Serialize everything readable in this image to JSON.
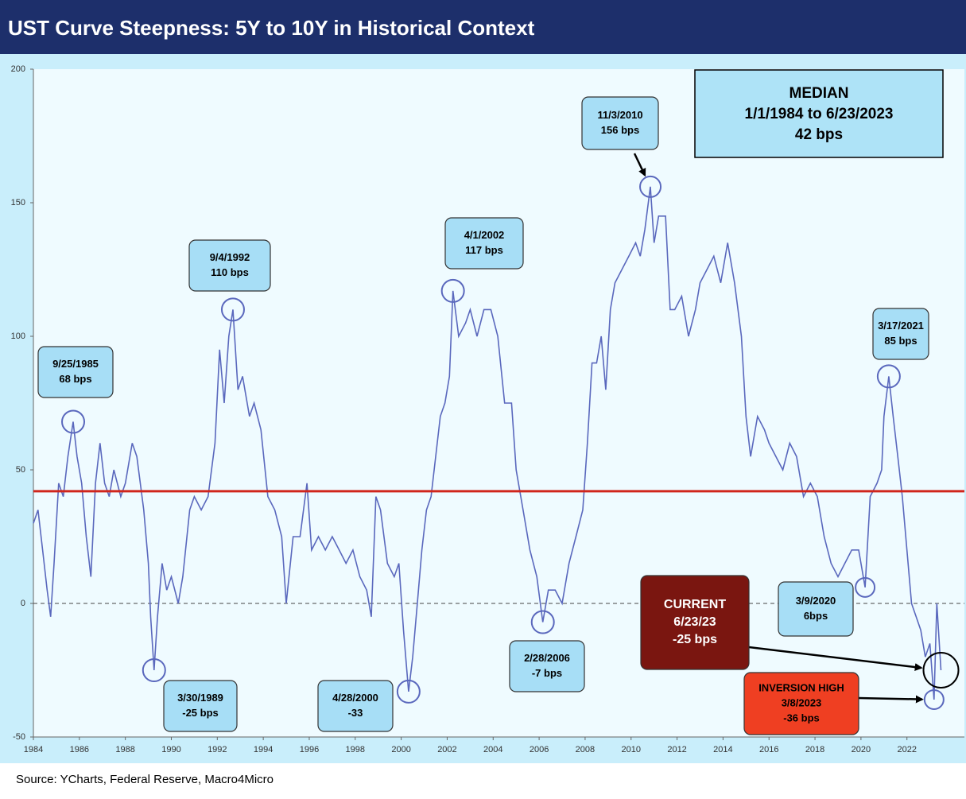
{
  "chart_data": {
    "type": "line",
    "title": "UST Curve Steepness: 5Y to 10Y in Historical Context",
    "source": "Source: YCharts, Federal Reserve, Macro4Micro",
    "xlim": [
      1984,
      2024.5
    ],
    "xticks": [
      1984,
      1986,
      1988,
      1990,
      1992,
      1994,
      1996,
      1998,
      2000,
      2002,
      2004,
      2006,
      2008,
      2010,
      2012,
      2014,
      2016,
      2018,
      2020,
      2022
    ],
    "ylim": [
      -50,
      200
    ],
    "yticks": [
      200,
      150,
      100,
      50,
      0,
      -50
    ],
    "median": 42,
    "median_color": "#d0261c",
    "median_box": {
      "lines": [
        "MEDIAN",
        "1/1/1984 to 6/23/2023",
        "42 bps"
      ]
    },
    "series": [
      {
        "color": "#5a68bd",
        "x": [
          1984.0,
          1984.2,
          1984.4,
          1984.6,
          1984.75,
          1984.9,
          1985.1,
          1985.3,
          1985.5,
          1985.73,
          1985.9,
          1986.1,
          1986.3,
          1986.5,
          1986.7,
          1986.9,
          1987.1,
          1987.3,
          1987.5,
          1987.8,
          1988.0,
          1988.3,
          1988.5,
          1988.8,
          1989.0,
          1989.1,
          1989.25,
          1989.4,
          1989.6,
          1989.8,
          1990.0,
          1990.3,
          1990.5,
          1990.8,
          1991.0,
          1991.3,
          1991.6,
          1991.9,
          1992.1,
          1992.3,
          1992.5,
          1992.68,
          1992.9,
          1993.1,
          1993.4,
          1993.6,
          1993.9,
          1994.2,
          1994.5,
          1994.8,
          1995.0,
          1995.3,
          1995.6,
          1995.9,
          1996.1,
          1996.4,
          1996.7,
          1997.0,
          1997.3,
          1997.6,
          1997.9,
          1998.2,
          1998.5,
          1998.7,
          1998.9,
          1999.1,
          1999.4,
          1999.7,
          1999.9,
          2000.1,
          2000.32,
          2000.5,
          2000.7,
          2000.9,
          2001.1,
          2001.3,
          2001.5,
          2001.7,
          2001.9,
          2002.1,
          2002.25,
          2002.5,
          2002.8,
          2003.0,
          2003.3,
          2003.6,
          2003.9,
          2004.2,
          2004.5,
          2004.8,
          2005.0,
          2005.3,
          2005.6,
          2005.9,
          2006.16,
          2006.4,
          2006.7,
          2007.0,
          2007.3,
          2007.6,
          2007.9,
          2008.1,
          2008.3,
          2008.5,
          2008.7,
          2008.9,
          2009.1,
          2009.3,
          2009.6,
          2009.9,
          2010.2,
          2010.4,
          2010.6,
          2010.84,
          2011.0,
          2011.2,
          2011.5,
          2011.7,
          2011.9,
          2012.2,
          2012.5,
          2012.8,
          2013.0,
          2013.3,
          2013.6,
          2013.9,
          2014.2,
          2014.5,
          2014.8,
          2015.0,
          2015.2,
          2015.5,
          2015.8,
          2016.0,
          2016.3,
          2016.6,
          2016.9,
          2017.2,
          2017.5,
          2017.8,
          2018.1,
          2018.4,
          2018.7,
          2019.0,
          2019.3,
          2019.6,
          2019.9,
          2020.18,
          2020.4,
          2020.7,
          2020.9,
          2021.0,
          2021.21,
          2021.4,
          2021.6,
          2021.8,
          2022.0,
          2022.2,
          2022.4,
          2022.6,
          2022.8,
          2023.0,
          2023.18,
          2023.3,
          2023.48
        ],
        "values": [
          30,
          35,
          20,
          5,
          -5,
          15,
          45,
          40,
          55,
          68,
          55,
          45,
          25,
          10,
          45,
          60,
          45,
          40,
          50,
          40,
          45,
          60,
          55,
          35,
          15,
          -5,
          -25,
          -5,
          15,
          5,
          10,
          0,
          10,
          35,
          40,
          35,
          40,
          60,
          95,
          75,
          100,
          110,
          80,
          85,
          70,
          75,
          65,
          40,
          35,
          25,
          0,
          25,
          25,
          45,
          20,
          25,
          20,
          25,
          20,
          15,
          20,
          10,
          5,
          -5,
          40,
          35,
          15,
          10,
          15,
          -10,
          -33,
          -20,
          0,
          20,
          35,
          40,
          55,
          70,
          75,
          85,
          117,
          100,
          105,
          110,
          100,
          110,
          110,
          100,
          75,
          75,
          50,
          35,
          20,
          10,
          -7,
          5,
          5,
          0,
          15,
          25,
          35,
          60,
          90,
          90,
          100,
          80,
          110,
          120,
          125,
          130,
          135,
          130,
          140,
          156,
          135,
          145,
          145,
          110,
          110,
          115,
          100,
          110,
          120,
          125,
          130,
          120,
          135,
          120,
          100,
          70,
          55,
          70,
          65,
          60,
          55,
          50,
          60,
          55,
          40,
          45,
          40,
          25,
          15,
          10,
          15,
          20,
          20,
          6,
          40,
          45,
          50,
          70,
          85,
          70,
          55,
          40,
          20,
          0,
          -5,
          -10,
          -20,
          -15,
          -36,
          0,
          -25
        ]
      }
    ],
    "annotations": [
      {
        "lines": [
          "9/25/1985",
          "68 bps"
        ],
        "x": 1985.73,
        "y": 68
      },
      {
        "lines": [
          "3/30/1989",
          "-25 bps"
        ],
        "x": 1989.25,
        "y": -25
      },
      {
        "lines": [
          "9/4/1992",
          "110 bps"
        ],
        "x": 1992.68,
        "y": 110
      },
      {
        "lines": [
          "4/28/2000",
          "-33"
        ],
        "x": 2000.32,
        "y": -33
      },
      {
        "lines": [
          "4/1/2002",
          "117 bps"
        ],
        "x": 2002.25,
        "y": 117
      },
      {
        "lines": [
          "2/28/2006",
          "-7 bps"
        ],
        "x": 2006.16,
        "y": -7
      },
      {
        "lines": [
          "11/3/2010",
          "156 bps"
        ],
        "x": 2010.84,
        "y": 156
      },
      {
        "lines": [
          "3/17/2021",
          "85 bps"
        ],
        "x": 2021.21,
        "y": 85
      },
      {
        "lines": [
          "3/9/2020",
          "6bps"
        ],
        "x": 2020.18,
        "y": 6
      },
      {
        "lines": [
          "CURRENT",
          "6/23/23",
          "-25 bps"
        ],
        "x": 2023.48,
        "y": -25
      },
      {
        "lines": [
          "INVERSION HIGH",
          "3/8/2023",
          "-36 bps"
        ],
        "x": 2023.18,
        "y": -36
      }
    ]
  }
}
